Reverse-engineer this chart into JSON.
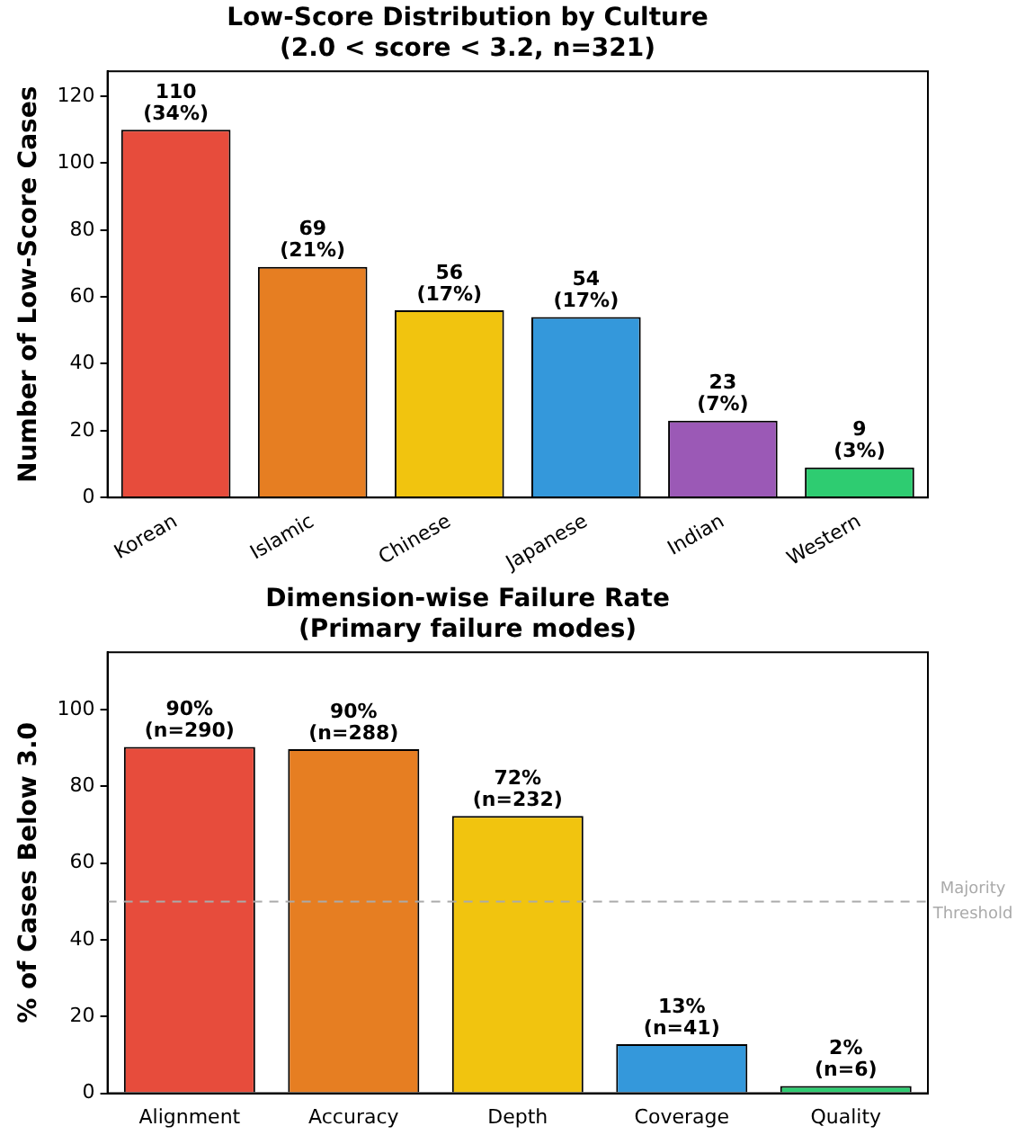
{
  "chart_data": [
    {
      "type": "bar",
      "title": "Low-Score Distribution by Culture\n(2.0 < score < 3.2, n=321)",
      "ylabel": "Number of Low-Score Cases",
      "categories": [
        "Korean",
        "Islamic",
        "Chinese",
        "Japanese",
        "Indian",
        "Western"
      ],
      "values": [
        110,
        69,
        56,
        54,
        23,
        9
      ],
      "colors": [
        "#e74c3c",
        "#e67e22",
        "#f1c40f",
        "#3498db",
        "#9b59b6",
        "#2ecc71"
      ],
      "value_labels": [
        "110\n(34%)",
        "69\n(21%)",
        "56\n(17%)",
        "54\n(17%)",
        "23\n(7%)",
        "9\n(3%)"
      ],
      "ylim": [
        0,
        127.5
      ],
      "yticks": [
        0,
        20,
        40,
        60,
        80,
        100,
        120
      ],
      "grid": false,
      "legend": false
    },
    {
      "type": "bar",
      "title": "Dimension-wise Failure Rate\n(Primary failure modes)",
      "ylabel": "% of Cases Below 3.0",
      "categories": [
        "Alignment",
        "Accuracy",
        "Depth",
        "Coverage",
        "Quality"
      ],
      "values": [
        90.3,
        89.7,
        72.3,
        12.8,
        1.9
      ],
      "colors": [
        "#e74c3c",
        "#e67e22",
        "#f1c40f",
        "#3498db",
        "#2ecc71"
      ],
      "value_labels": [
        "90%\n(n=290)",
        "90%\n(n=288)",
        "72%\n(n=232)",
        "13%\n(n=41)",
        "2%\n(n=6)"
      ],
      "ylim": [
        0,
        115
      ],
      "yticks": [
        0,
        20,
        40,
        60,
        80,
        100
      ],
      "grid": false,
      "legend": false,
      "ref_lines": [
        {
          "axis": "y",
          "value": 50,
          "label": "Majority\nThreshold",
          "color": "#aaaaaa",
          "line_style": "dashed"
        }
      ]
    }
  ]
}
